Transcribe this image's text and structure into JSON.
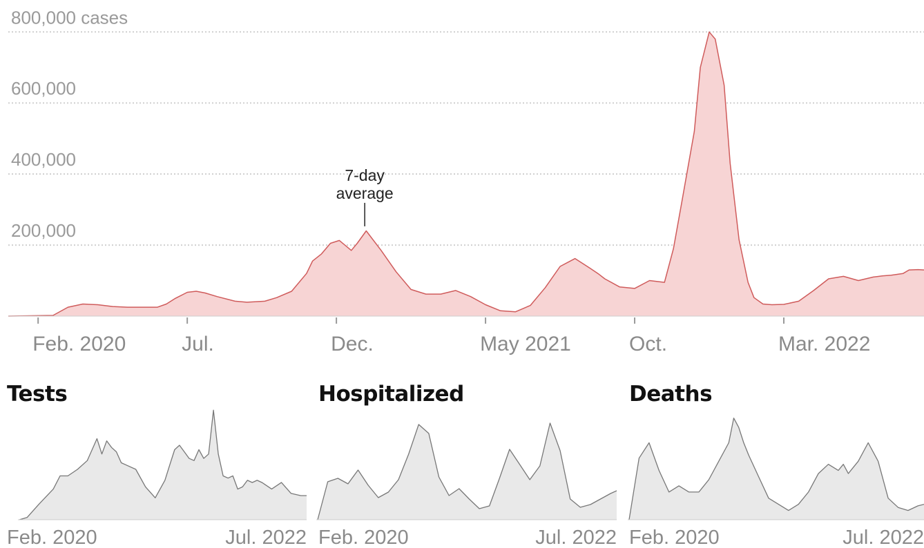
{
  "colors": {
    "cases_fill": "#f7d4d4",
    "cases_line": "#cf5b5b",
    "small_fill": "#e9e9e9",
    "small_line": "#777777",
    "grid": "#cfcfcf",
    "text": "#8a8a8a"
  },
  "chart_data": [
    {
      "type": "area",
      "ylabel": "",
      "ytick_labels": [
        "200,000",
        "400,000",
        "600,000",
        "800,000 cases"
      ],
      "yticks": [
        200000,
        400000,
        600000,
        800000
      ],
      "ylim": [
        0,
        820000
      ],
      "xlim": [
        0,
        30.7
      ],
      "x_unit": "months since Jan. 2020",
      "xtick_positions": [
        1,
        6,
        11,
        16,
        21,
        26
      ],
      "xtick_labels": [
        "Feb. 2020",
        "Jul.",
        "Dec.",
        "May 2021",
        "Oct.",
        "Mar. 2022"
      ],
      "grid": true,
      "annotation": {
        "lines": [
          "7-day",
          "average"
        ],
        "x": 11.95,
        "y": 245000
      },
      "series": [
        {
          "x": [
            0,
            1.5,
            2.0,
            2.5,
            3.0,
            3.5,
            4.0,
            5.0,
            5.3,
            5.6,
            6.0,
            6.3,
            6.6,
            7.0,
            7.6,
            8.0,
            8.6,
            9.0,
            9.5,
            10.0,
            10.2,
            10.5,
            10.8,
            11.1,
            11.5,
            11.7,
            12.0,
            12.5,
            13.0,
            13.5,
            14.0,
            14.5,
            15.0,
            15.5,
            16.0,
            16.5,
            17.0,
            17.5,
            18.0,
            18.5,
            19.0,
            19.5,
            19.8,
            20.0,
            20.5,
            21.0,
            21.5,
            22.0,
            22.3,
            22.6,
            23.0,
            23.2,
            23.5,
            23.7,
            24.0,
            24.2,
            24.5,
            24.8,
            25.0,
            25.3,
            25.6,
            26.0,
            26.5,
            27.0,
            27.5,
            28.0,
            28.5,
            29.0,
            29.3,
            29.6,
            30.0,
            30.2,
            30.5,
            30.7
          ],
          "y": [
            0,
            2000,
            25000,
            34000,
            32000,
            27000,
            25000,
            25000,
            34000,
            50000,
            67000,
            70000,
            65000,
            55000,
            42000,
            39000,
            42000,
            52000,
            70000,
            120000,
            155000,
            175000,
            205000,
            213000,
            185000,
            205000,
            240000,
            185000,
            125000,
            75000,
            62000,
            62000,
            72000,
            55000,
            32000,
            15000,
            12000,
            30000,
            80000,
            140000,
            162000,
            135000,
            118000,
            105000,
            82000,
            78000,
            100000,
            95000,
            190000,
            330000,
            520000,
            700000,
            800000,
            780000,
            650000,
            430000,
            215000,
            95000,
            52000,
            34000,
            32000,
            33000,
            42000,
            72000,
            105000,
            112000,
            100000,
            110000,
            113000,
            115000,
            120000,
            130000,
            131000,
            130000
          ]
        }
      ]
    },
    {
      "type": "area",
      "title": "Tests",
      "xtick_labels": [
        "Feb. 2020",
        "Jul. 2022"
      ],
      "xlim": [
        0,
        29.6
      ],
      "ylim": [
        0,
        2.6
      ],
      "series": [
        {
          "x": [
            0,
            0.8,
            2,
            3.5,
            4.2,
            5,
            6,
            7,
            8,
            8.5,
            9,
            9.5,
            10,
            10.5,
            11,
            12,
            13,
            14,
            15,
            15.5,
            16,
            16.5,
            17,
            17.5,
            18,
            18.5,
            19,
            19.5,
            20,
            20.5,
            21,
            21.5,
            22,
            22.5,
            23,
            23.5,
            24,
            24.5,
            25,
            26,
            27,
            28,
            29,
            29.6
          ],
          "y": [
            0,
            0.05,
            0.35,
            0.7,
            1.0,
            1.0,
            1.15,
            1.35,
            1.85,
            1.5,
            1.8,
            1.65,
            1.55,
            1.3,
            1.25,
            1.15,
            0.75,
            0.5,
            0.9,
            1.25,
            1.6,
            1.7,
            1.55,
            1.4,
            1.35,
            1.6,
            1.4,
            1.5,
            2.5,
            1.5,
            1.0,
            0.95,
            1.0,
            0.7,
            0.75,
            0.9,
            0.85,
            0.9,
            0.85,
            0.7,
            0.85,
            0.6,
            0.55,
            0.55
          ]
        }
      ]
    },
    {
      "type": "area",
      "title": "Hospitalized",
      "xtick_labels": [
        "Feb. 2020",
        "Jul. 2022"
      ],
      "xlim": [
        0,
        29.6
      ],
      "ylim": [
        0,
        165000
      ],
      "series": [
        {
          "x": [
            0,
            1,
            2,
            3,
            4,
            5,
            6,
            7,
            8,
            9,
            10,
            11,
            12,
            13,
            14,
            15,
            16,
            17,
            18,
            19,
            20,
            21,
            22,
            23,
            24,
            25,
            26,
            27,
            28,
            29,
            29.6
          ],
          "y": [
            0,
            55000,
            60000,
            52000,
            72000,
            50000,
            32000,
            40000,
            58000,
            95000,
            138000,
            125000,
            62000,
            35000,
            45000,
            30000,
            16000,
            20000,
            60000,
            102000,
            80000,
            58000,
            78000,
            140000,
            100000,
            30000,
            18000,
            22000,
            30000,
            38000,
            42000
          ]
        }
      ]
    },
    {
      "type": "area",
      "title": "Deaths",
      "xtick_labels": [
        "Feb. 2020",
        "Jul. 2022"
      ],
      "xlim": [
        0,
        29.6
      ],
      "ylim": [
        0,
        3700
      ],
      "series": [
        {
          "x": [
            0,
            1,
            2,
            3,
            4,
            5,
            6,
            7,
            8,
            9,
            10,
            10.5,
            11,
            11.5,
            12,
            13,
            14,
            15,
            16,
            17,
            18,
            19,
            20,
            21,
            21.5,
            22,
            22.5,
            23,
            24,
            25,
            26,
            27,
            28,
            29,
            29.6
          ],
          "y": [
            0,
            2000,
            2500,
            1600,
            900,
            1100,
            900,
            900,
            1300,
            1900,
            2500,
            3300,
            3000,
            2500,
            2100,
            1400,
            700,
            500,
            300,
            500,
            900,
            1500,
            1800,
            1600,
            1800,
            1500,
            1700,
            1900,
            2500,
            1900,
            700,
            400,
            300,
            450,
            500
          ]
        }
      ]
    }
  ]
}
